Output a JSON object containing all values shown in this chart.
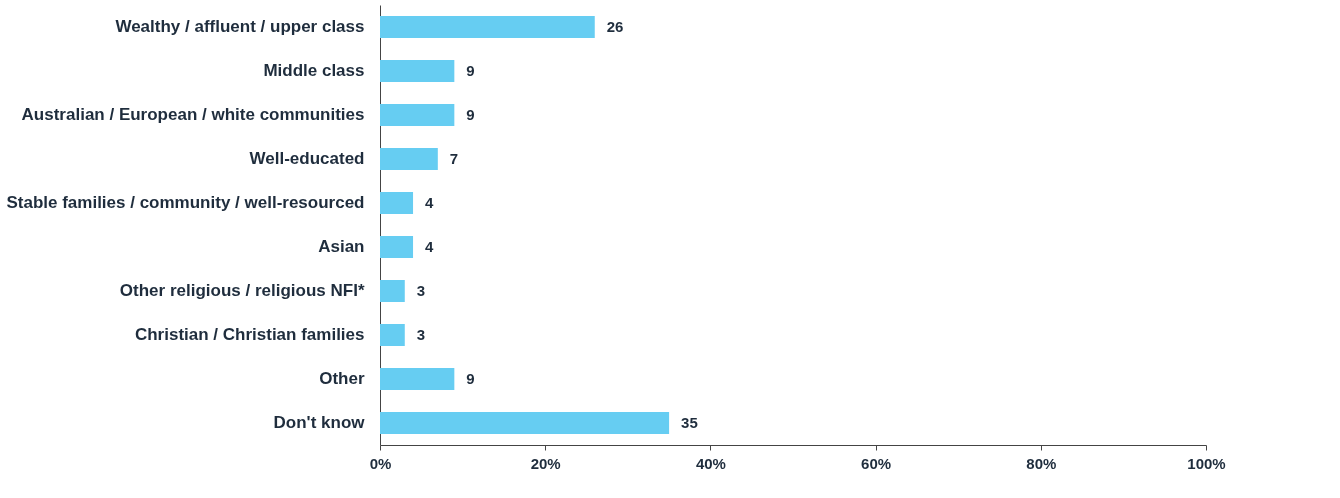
{
  "chart_data": {
    "type": "bar",
    "orientation": "horizontal",
    "categories": [
      "Wealthy / affluent / upper class",
      "Middle class",
      "Australian / European / white communities",
      "Well-educated",
      "Stable families / community / well-resourced",
      "Asian",
      "Other religious / religious NFI*",
      "Christian / Christian families",
      "Other",
      "Don't know"
    ],
    "values": [
      26,
      9,
      9,
      7,
      4,
      4,
      3,
      3,
      9,
      35
    ],
    "color": "#66cdf2",
    "xlim": [
      0,
      100
    ],
    "xticks": [
      {
        "value": 0,
        "label": "0%"
      },
      {
        "value": 20,
        "label": "20%"
      },
      {
        "value": 40,
        "label": "40%"
      },
      {
        "value": 60,
        "label": "60%"
      },
      {
        "value": 80,
        "label": "80%"
      },
      {
        "value": 100,
        "label": "100%"
      }
    ],
    "data_labels": true,
    "grid": false
  }
}
